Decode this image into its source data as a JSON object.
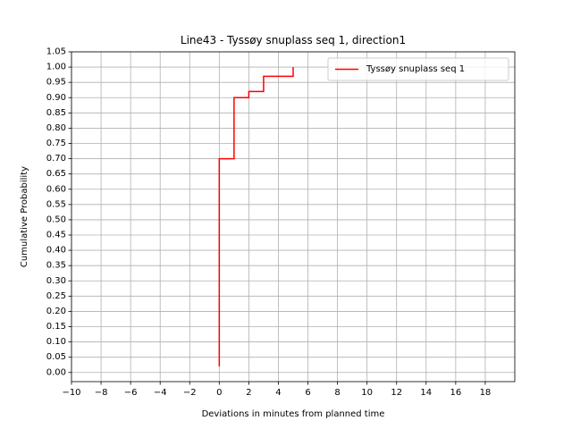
{
  "chart_data": {
    "type": "line",
    "title": "Line43 - Tyssøy snuplass seq 1, direction1",
    "xlabel": "Deviations in minutes from planned time",
    "ylabel": "Cumulative Probability",
    "xlim": [
      -10,
      20
    ],
    "ylim": [
      -0.03,
      1.05
    ],
    "xticks": [
      -10,
      -8,
      -6,
      -4,
      -2,
      0,
      2,
      4,
      6,
      8,
      10,
      12,
      14,
      16,
      18
    ],
    "xtick_labels": [
      "−10",
      "−8",
      "−6",
      "−4",
      "−2",
      "0",
      "2",
      "4",
      "6",
      "8",
      "10",
      "12",
      "14",
      "16",
      "18"
    ],
    "yticks": [
      0.0,
      0.05,
      0.1,
      0.15,
      0.2,
      0.25,
      0.3,
      0.35,
      0.4,
      0.45,
      0.5,
      0.55,
      0.6,
      0.65,
      0.7,
      0.75,
      0.8,
      0.85,
      0.9,
      0.95,
      1.0,
      1.05
    ],
    "ytick_labels": [
      "0.00",
      "0.05",
      "0.10",
      "0.15",
      "0.20",
      "0.25",
      "0.30",
      "0.35",
      "0.40",
      "0.45",
      "0.50",
      "0.55",
      "0.60",
      "0.65",
      "0.70",
      "0.75",
      "0.80",
      "0.85",
      "0.90",
      "0.95",
      "1.00",
      "1.05"
    ],
    "grid": true,
    "legend_position": "top-right",
    "series": [
      {
        "name": "Tyssøy snuplass seq 1",
        "color": "#ff0000",
        "step": true,
        "points": [
          {
            "x": 0,
            "y": 0.02
          },
          {
            "x": 0,
            "y": 0.7
          },
          {
            "x": 1,
            "y": 0.7
          },
          {
            "x": 1,
            "y": 0.9
          },
          {
            "x": 2,
            "y": 0.9
          },
          {
            "x": 2,
            "y": 0.92
          },
          {
            "x": 3,
            "y": 0.92
          },
          {
            "x": 3,
            "y": 0.97
          },
          {
            "x": 5,
            "y": 0.97
          },
          {
            "x": 5,
            "y": 1.0
          }
        ]
      }
    ]
  }
}
